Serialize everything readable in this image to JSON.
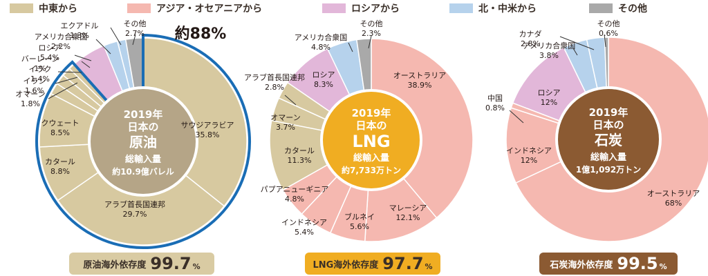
{
  "legend": [
    {
      "label": "中東から",
      "color": "#d7c9a0"
    },
    {
      "label": "アジア・オセアニアから",
      "color": "#f5b8b0"
    },
    {
      "label": "ロシアから",
      "color": "#e2b7d9"
    },
    {
      "label": "北・中米から",
      "color": "#b6d2ec"
    },
    {
      "label": "その他",
      "color": "#a9a9a9"
    }
  ],
  "colors": {
    "middle_east": "#d7c9a0",
    "asia_oceania": "#f5b8b0",
    "russia": "#e2b7d9",
    "americas": "#b6d2ec",
    "other": "#a9a9a9",
    "highlight": "#1a6db5",
    "oil_center": "#b5a587",
    "lng_center": "#f0ad22",
    "coal_center": "#8b5a32"
  },
  "chart_data": [
    {
      "type": "pie",
      "title": "2019年日本の原油総輸入量約10.9億バレル",
      "center": {
        "year": "2019年",
        "subject": "日本の",
        "name": "原油",
        "measure": "総輸入量",
        "amount": "約10.9億バレル"
      },
      "highlight_label": "約88%",
      "unit": "%",
      "slices": [
        {
          "name": "サウジアラビア",
          "value": 35.8,
          "group": "middle_east"
        },
        {
          "name": "アラブ首長国連邦",
          "value": 29.7,
          "group": "middle_east"
        },
        {
          "name": "カタール",
          "value": 8.8,
          "group": "middle_east"
        },
        {
          "name": "クウェート",
          "value": 8.5,
          "group": "middle_east"
        },
        {
          "name": "オマーン",
          "value": 1.8,
          "group": "middle_east"
        },
        {
          "name": "イラン",
          "value": 1.6,
          "group": "middle_east"
        },
        {
          "name": "イラク",
          "value": 1.4,
          "group": "middle_east"
        },
        {
          "name": "バーレーン",
          "value": 1.0,
          "group": "middle_east"
        },
        {
          "name": "ロシア",
          "value": 5.4,
          "group": "russia"
        },
        {
          "name": "アメリカ合衆国",
          "value": 2.2,
          "group": "americas"
        },
        {
          "name": "エクアドル",
          "value": 1.3,
          "group": "americas"
        },
        {
          "name": "その他",
          "value": 2.7,
          "group": "other"
        }
      ],
      "dependence": {
        "label": "原油海外依存度",
        "value": "99.7",
        "unit": "%"
      }
    },
    {
      "type": "pie",
      "title": "2019年日本のLNG総輸入量約7,733万トン",
      "center": {
        "year": "2019年",
        "subject": "日本の",
        "name": "LNG",
        "measure": "総輸入量",
        "amount": "約7,733万トン"
      },
      "unit": "%",
      "slices": [
        {
          "name": "オーストラリア",
          "value": 38.9,
          "group": "asia_oceania"
        },
        {
          "name": "マレーシア",
          "value": 12.1,
          "group": "asia_oceania"
        },
        {
          "name": "ブルネイ",
          "value": 5.6,
          "group": "asia_oceania"
        },
        {
          "name": "インドネシア",
          "value": 5.4,
          "group": "asia_oceania"
        },
        {
          "name": "パプアニューギニア",
          "value": 4.8,
          "group": "asia_oceania"
        },
        {
          "name": "カタール",
          "value": 11.3,
          "group": "middle_east"
        },
        {
          "name": "オマーン",
          "value": 3.7,
          "group": "middle_east"
        },
        {
          "name": "アラブ首長国連邦",
          "value": 2.8,
          "group": "middle_east"
        },
        {
          "name": "ロシア",
          "value": 8.3,
          "group": "russia"
        },
        {
          "name": "アメリカ合衆国",
          "value": 4.8,
          "group": "americas"
        },
        {
          "name": "その他",
          "value": 2.3,
          "group": "other"
        }
      ],
      "dependence": {
        "label": "LNG海外依存度",
        "value": "97.7",
        "unit": "%"
      }
    },
    {
      "type": "pie",
      "title": "2019年日本の石炭総輸入量1億1,092万トン",
      "center": {
        "year": "2019年",
        "subject": "日本の",
        "name": "石炭",
        "measure": "総輸入量",
        "amount": "1億1,092万トン"
      },
      "unit": "%",
      "slices": [
        {
          "name": "オーストラリア",
          "value": 68,
          "group": "asia_oceania"
        },
        {
          "name": "インドネシア",
          "value": 12,
          "group": "asia_oceania"
        },
        {
          "name": "中国",
          "value": 0.8,
          "group": "asia_oceania"
        },
        {
          "name": "ロシア",
          "value": 12,
          "group": "russia"
        },
        {
          "name": "アメリカ合衆国",
          "value": 3.8,
          "group": "americas"
        },
        {
          "name": "カナダ",
          "value": 2.8,
          "group": "americas"
        },
        {
          "name": "その他",
          "value": 0.6,
          "group": "other"
        }
      ],
      "dependence": {
        "label": "石炭海外依存度",
        "value": "99.5",
        "unit": "%"
      }
    }
  ]
}
